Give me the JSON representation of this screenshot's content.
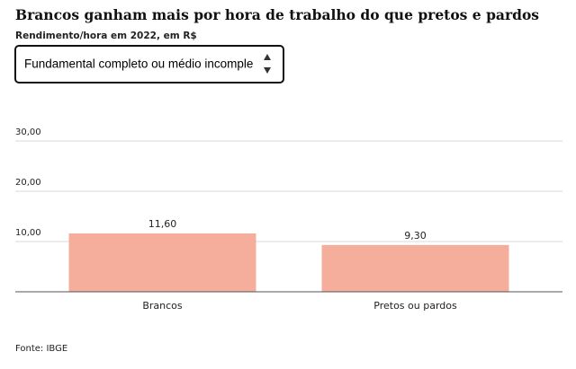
{
  "chart_data": {
    "type": "bar",
    "title": "Brancos ganham mais por hora de trabalho do que pretos e pardos",
    "subtitle": "Rendimento/hora em 2022, em R$",
    "dropdown": "Fundamental completo ou médio incomple",
    "categories": [
      "Brancos",
      "Pretos ou pardos"
    ],
    "values": [
      11.6,
      9.3
    ],
    "value_labels": [
      "11,60",
      "9,30"
    ],
    "color": "#f5ae9b",
    "ylim": [
      0,
      30
    ],
    "yticks": [
      {
        "value": 10,
        "label": "10,00"
      },
      {
        "value": 20,
        "label": "20,00"
      },
      {
        "value": 30,
        "label": "30,00"
      }
    ],
    "grid": true,
    "source": "Fonte: IBGE"
  }
}
